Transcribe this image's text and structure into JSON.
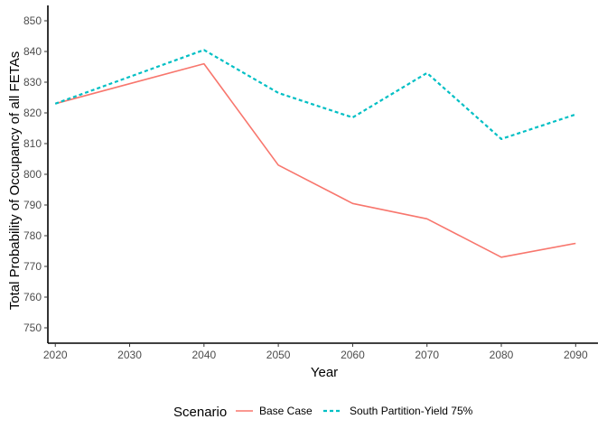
{
  "chart_data": {
    "type": "line",
    "xlabel": "Year",
    "ylabel": "Total Probability of Occupancy of all FETAs",
    "x": [
      2020,
      2040,
      2050,
      2060,
      2070,
      2080,
      2090
    ],
    "xticks": [
      2020,
      2030,
      2040,
      2050,
      2060,
      2070,
      2080,
      2090
    ],
    "yticks": [
      750,
      760,
      770,
      780,
      790,
      800,
      810,
      820,
      830,
      840,
      850
    ],
    "xlim": [
      2019,
      2093
    ],
    "ylim": [
      745,
      855
    ],
    "grid": false,
    "legend_position": "bottom",
    "legend_title": "Scenario",
    "series": [
      {
        "name": "Base Case",
        "color": "#F8766D",
        "line_style": "solid",
        "values": [
          823,
          836,
          803,
          790.5,
          785.5,
          773,
          777.5
        ]
      },
      {
        "name": "South Partition-Yield 75%",
        "color": "#00BFC4",
        "line_style": "dashed",
        "values": [
          823,
          840.5,
          826.5,
          818.5,
          833,
          811.5,
          819.5
        ]
      }
    ]
  }
}
